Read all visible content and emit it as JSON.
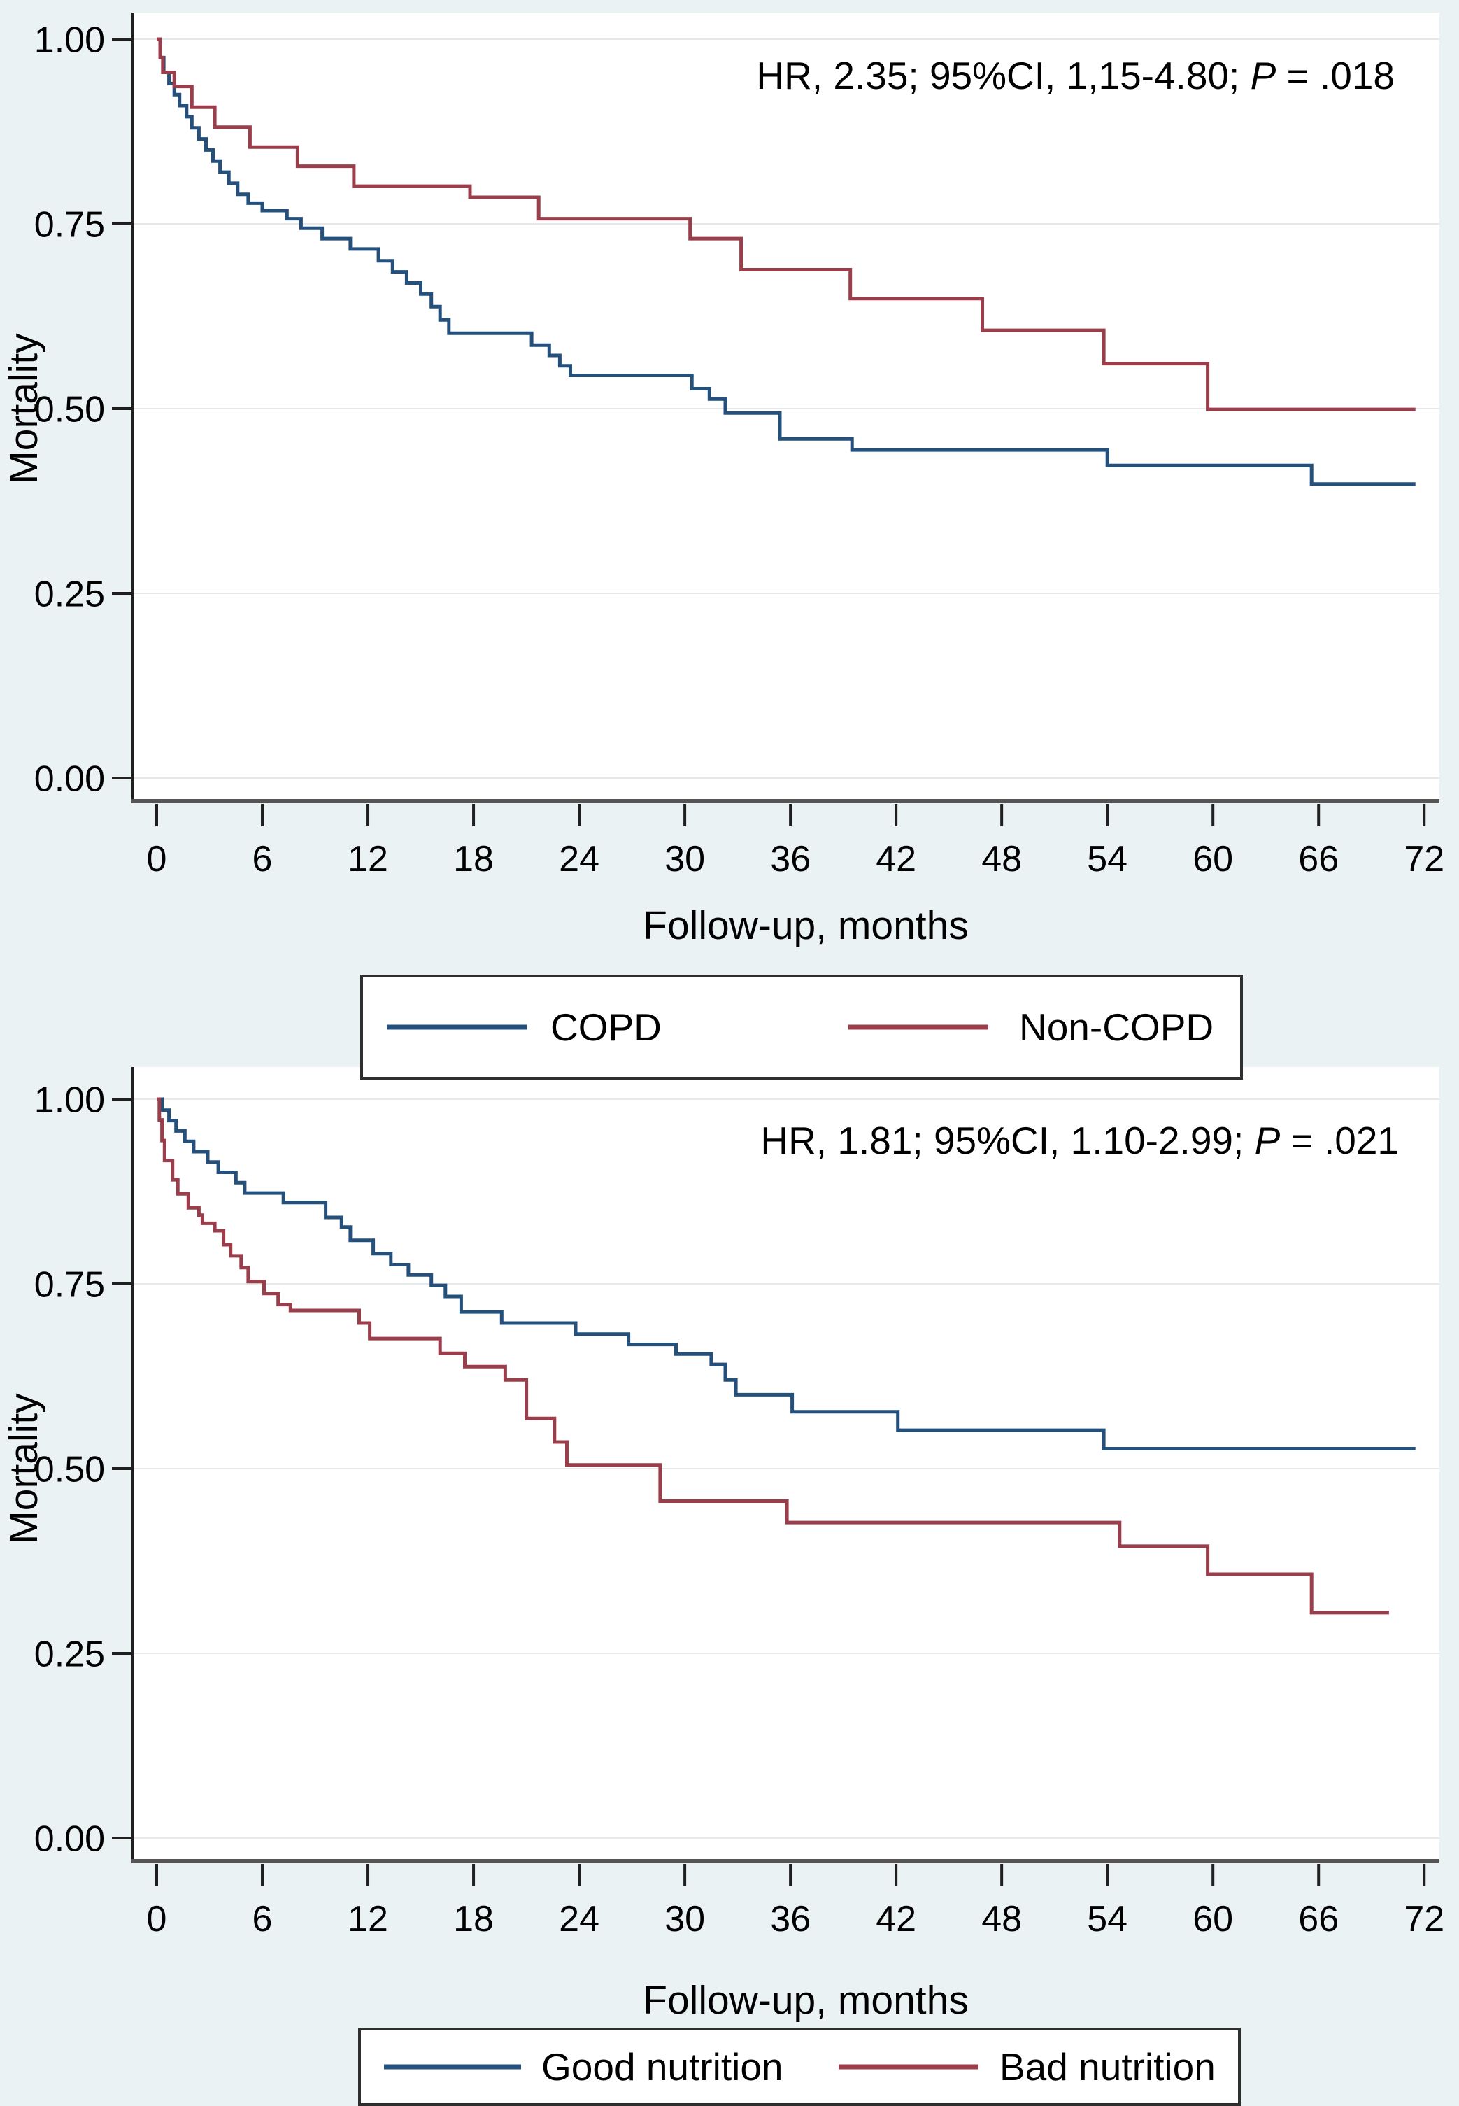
{
  "page": {
    "background_color": "#eaf2f3",
    "plot_background_color": "#ffffff",
    "gridline_color": "#e6e9ea",
    "axis_color": "#2a2a2a"
  },
  "chart_data": [
    {
      "type": "line",
      "subtype": "kaplan-meier-step",
      "annotation": {
        "pre": "HR, 2.35; 95%CI, 1,15-4.80; ",
        "p": "P",
        "post": " = .018"
      },
      "xlabel": "Follow-up, months",
      "ylabel": "Mortality",
      "xlim": [
        0,
        72
      ],
      "ylim": [
        0.0,
        1.0
      ],
      "grid": "horizontal",
      "legend_position": "below",
      "xticks": [
        0,
        6,
        12,
        18,
        24,
        30,
        36,
        42,
        48,
        54,
        60,
        66,
        72
      ],
      "yticks": [
        {
          "v": 1.0,
          "label": "1.00"
        },
        {
          "v": 0.75,
          "label": "0.75"
        },
        {
          "v": 0.5,
          "label": "0.50"
        },
        {
          "v": 0.25,
          "label": "0.25"
        },
        {
          "v": 0.0,
          "label": "0.00"
        }
      ],
      "series": [
        {
          "name": "COPD",
          "color": "#24507b",
          "points": [
            [
              0,
              1.0
            ],
            [
              0.2,
              0.975
            ],
            [
              0.4,
              0.955
            ],
            [
              0.7,
              0.94
            ],
            [
              1.0,
              0.925
            ],
            [
              1.3,
              0.91
            ],
            [
              1.7,
              0.895
            ],
            [
              2.0,
              0.88
            ],
            [
              2.4,
              0.865
            ],
            [
              2.8,
              0.85
            ],
            [
              3.2,
              0.835
            ],
            [
              3.6,
              0.82
            ],
            [
              4.1,
              0.805
            ],
            [
              4.6,
              0.79
            ],
            [
              5.2,
              0.778
            ],
            [
              6.0,
              0.768
            ],
            [
              7.4,
              0.757
            ],
            [
              8.2,
              0.744
            ],
            [
              9.4,
              0.73
            ],
            [
              11.0,
              0.716
            ],
            [
              12.6,
              0.7
            ],
            [
              13.4,
              0.685
            ],
            [
              14.2,
              0.67
            ],
            [
              15.0,
              0.655
            ],
            [
              15.6,
              0.638
            ],
            [
              16.1,
              0.62
            ],
            [
              16.6,
              0.602
            ],
            [
              21.3,
              0.586
            ],
            [
              22.3,
              0.572
            ],
            [
              22.9,
              0.558
            ],
            [
              23.5,
              0.545
            ],
            [
              30.4,
              0.527
            ],
            [
              31.4,
              0.513
            ],
            [
              32.3,
              0.494
            ],
            [
              35.4,
              0.459
            ],
            [
              39.5,
              0.444
            ],
            [
              54.0,
              0.423
            ],
            [
              65.6,
              0.398
            ],
            [
              71.5,
              0.398
            ]
          ]
        },
        {
          "name": "Non-COPD",
          "color": "#9a3e4c",
          "points": [
            [
              0,
              1.0
            ],
            [
              0.2,
              0.975
            ],
            [
              0.35,
              0.955
            ],
            [
              1.0,
              0.936
            ],
            [
              2.0,
              0.908
            ],
            [
              3.3,
              0.881
            ],
            [
              5.3,
              0.854
            ],
            [
              8.0,
              0.828
            ],
            [
              11.2,
              0.801
            ],
            [
              17.8,
              0.786
            ],
            [
              21.7,
              0.757
            ],
            [
              30.3,
              0.73
            ],
            [
              33.2,
              0.688
            ],
            [
              39.4,
              0.649
            ],
            [
              46.9,
              0.606
            ],
            [
              53.8,
              0.561
            ],
            [
              59.7,
              0.499
            ],
            [
              71.5,
              0.499
            ]
          ]
        }
      ]
    },
    {
      "type": "line",
      "subtype": "kaplan-meier-step",
      "annotation": {
        "pre": "HR, 1.81; 95%CI, 1.10-2.99; ",
        "p": "P",
        "post": " = .021"
      },
      "xlabel": "Follow-up, months",
      "ylabel": "Mortality",
      "xlim": [
        0,
        72
      ],
      "ylim": [
        0.0,
        1.0
      ],
      "grid": "horizontal",
      "legend_position": "below",
      "xticks": [
        0,
        6,
        12,
        18,
        24,
        30,
        36,
        42,
        48,
        54,
        60,
        66,
        72
      ],
      "yticks": [
        {
          "v": 1.0,
          "label": "1.00"
        },
        {
          "v": 0.75,
          "label": "0.75"
        },
        {
          "v": 0.5,
          "label": "0.50"
        },
        {
          "v": 0.25,
          "label": "0.25"
        },
        {
          "v": 0.0,
          "label": "0.00"
        }
      ],
      "series": [
        {
          "name": "Good nutrition",
          "color": "#24507b",
          "points": [
            [
              0,
              1.0
            ],
            [
              0.3,
              0.985
            ],
            [
              0.7,
              0.971
            ],
            [
              1.1,
              0.957
            ],
            [
              1.6,
              0.943
            ],
            [
              2.1,
              0.929
            ],
            [
              2.9,
              0.915
            ],
            [
              3.5,
              0.901
            ],
            [
              4.5,
              0.887
            ],
            [
              5.0,
              0.873
            ],
            [
              7.2,
              0.86
            ],
            [
              9.6,
              0.84
            ],
            [
              10.5,
              0.827
            ],
            [
              11.0,
              0.809
            ],
            [
              12.3,
              0.791
            ],
            [
              13.3,
              0.776
            ],
            [
              14.3,
              0.762
            ],
            [
              15.6,
              0.748
            ],
            [
              16.4,
              0.733
            ],
            [
              17.3,
              0.712
            ],
            [
              19.6,
              0.697
            ],
            [
              23.8,
              0.682
            ],
            [
              26.8,
              0.668
            ],
            [
              29.5,
              0.655
            ],
            [
              31.5,
              0.641
            ],
            [
              32.3,
              0.62
            ],
            [
              32.9,
              0.6
            ],
            [
              36.1,
              0.577
            ],
            [
              42.1,
              0.552
            ],
            [
              53.8,
              0.527
            ],
            [
              71.5,
              0.527
            ]
          ]
        },
        {
          "name": "Bad nutrition",
          "color": "#9a3e4c",
          "points": [
            [
              0,
              1.0
            ],
            [
              0.15,
              0.972
            ],
            [
              0.3,
              0.944
            ],
            [
              0.45,
              0.917
            ],
            [
              0.9,
              0.891
            ],
            [
              1.2,
              0.872
            ],
            [
              1.8,
              0.853
            ],
            [
              2.4,
              0.843
            ],
            [
              2.6,
              0.832
            ],
            [
              3.3,
              0.822
            ],
            [
              3.8,
              0.803
            ],
            [
              4.2,
              0.788
            ],
            [
              4.8,
              0.772
            ],
            [
              5.2,
              0.753
            ],
            [
              6.1,
              0.737
            ],
            [
              6.9,
              0.722
            ],
            [
              7.6,
              0.714
            ],
            [
              11.5,
              0.697
            ],
            [
              12.1,
              0.676
            ],
            [
              16.1,
              0.656
            ],
            [
              17.5,
              0.638
            ],
            [
              19.8,
              0.62
            ],
            [
              21.0,
              0.568
            ],
            [
              22.6,
              0.536
            ],
            [
              23.3,
              0.505
            ],
            [
              28.6,
              0.456
            ],
            [
              35.8,
              0.427
            ],
            [
              54.7,
              0.395
            ],
            [
              59.7,
              0.357
            ],
            [
              65.6,
              0.305
            ],
            [
              70.0,
              0.305
            ]
          ]
        }
      ]
    }
  ]
}
